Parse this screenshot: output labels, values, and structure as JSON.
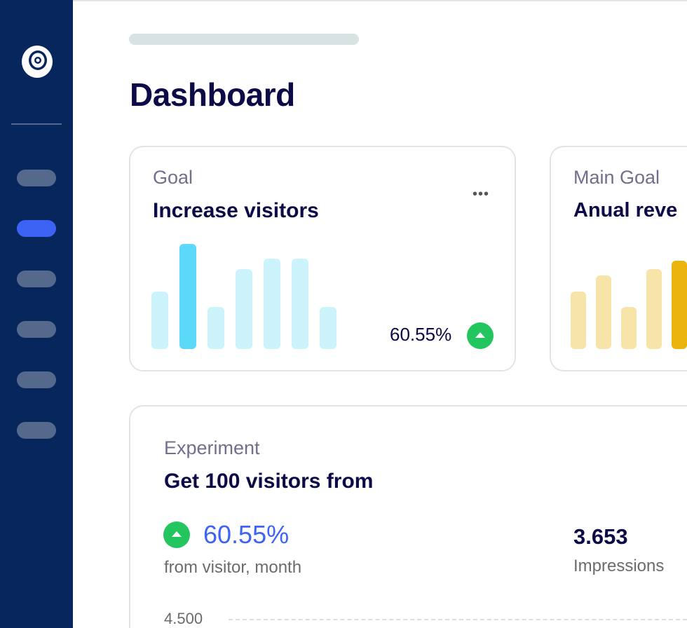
{
  "page_title": "Dashboard",
  "colors": {
    "sidebar": "#06265c",
    "active_nav": "#3d63f5",
    "positive": "#22c55e",
    "accent_blue": "#3d63f5"
  },
  "sidebar": {
    "logo_icon": "target-icon",
    "nav_count": 6,
    "active_index": 1
  },
  "goal_card": {
    "label": "Goal",
    "title": "Increase visitors",
    "menu_icon": "more-horizontal-icon",
    "change": "60.55%",
    "trend_icon": "arrow-up-icon",
    "chart_data": {
      "type": "bar",
      "values": [
        0.55,
        1.0,
        0.4,
        0.76,
        0.86,
        0.86,
        0.4
      ],
      "highlight_index": 1
    }
  },
  "main_goal_card": {
    "label": "Main Goal",
    "title": "Anual reve",
    "chart_data": {
      "type": "bar",
      "values": [
        0.55,
        0.7,
        0.4,
        0.76,
        0.84
      ],
      "highlight_index": 4
    }
  },
  "experiment_card": {
    "label": "Experiment",
    "title": "Get 100 visitors from",
    "change": "60.55%",
    "change_caption": "from visitor, month",
    "impressions_value": "3.653",
    "impressions_label": "Impressions",
    "axis_tick": "4.500"
  }
}
